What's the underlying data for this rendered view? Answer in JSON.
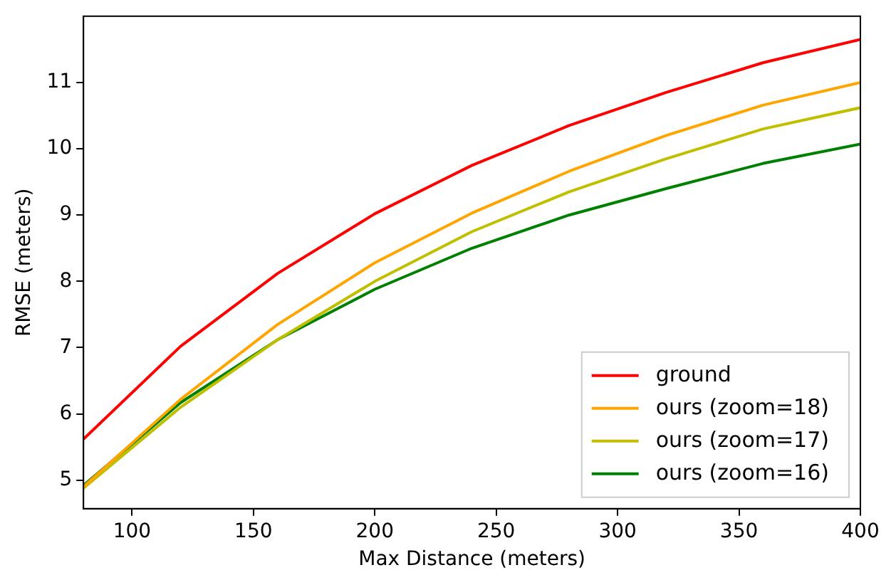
{
  "chart_data": {
    "type": "line",
    "xlabel": "Max Distance (meters)",
    "ylabel": "RMSE (meters)",
    "x": [
      80,
      120,
      160,
      200,
      240,
      280,
      320,
      360,
      400
    ],
    "series": [
      {
        "name": "ground",
        "color": "#ff0000",
        "values": [
          5.62,
          7.02,
          8.12,
          9.02,
          9.75,
          10.35,
          10.85,
          11.3,
          11.65
        ]
      },
      {
        "name": "ours (zoom=18)",
        "color": "#ffa500",
        "values": [
          4.9,
          6.22,
          7.35,
          8.28,
          9.03,
          9.66,
          10.2,
          10.66,
          11.0
        ]
      },
      {
        "name": "ours (zoom=17)",
        "color": "#bfbf00",
        "values": [
          4.88,
          6.1,
          7.12,
          8.0,
          8.75,
          9.35,
          9.85,
          10.3,
          10.62
        ]
      },
      {
        "name": "ours (zoom=16)",
        "color": "#008000",
        "values": [
          4.92,
          6.17,
          7.12,
          7.88,
          8.5,
          9.0,
          9.4,
          9.78,
          10.07
        ]
      }
    ],
    "xlim": [
      80,
      400
    ],
    "xticks": [
      100,
      150,
      200,
      250,
      300,
      350,
      400
    ],
    "ylim": [
      4.57,
      12.0
    ],
    "yticks": [
      5,
      6,
      7,
      8,
      9,
      10,
      11
    ],
    "grid": false,
    "legend": "bottom right",
    "marker": "none",
    "line_style": "solid"
  }
}
